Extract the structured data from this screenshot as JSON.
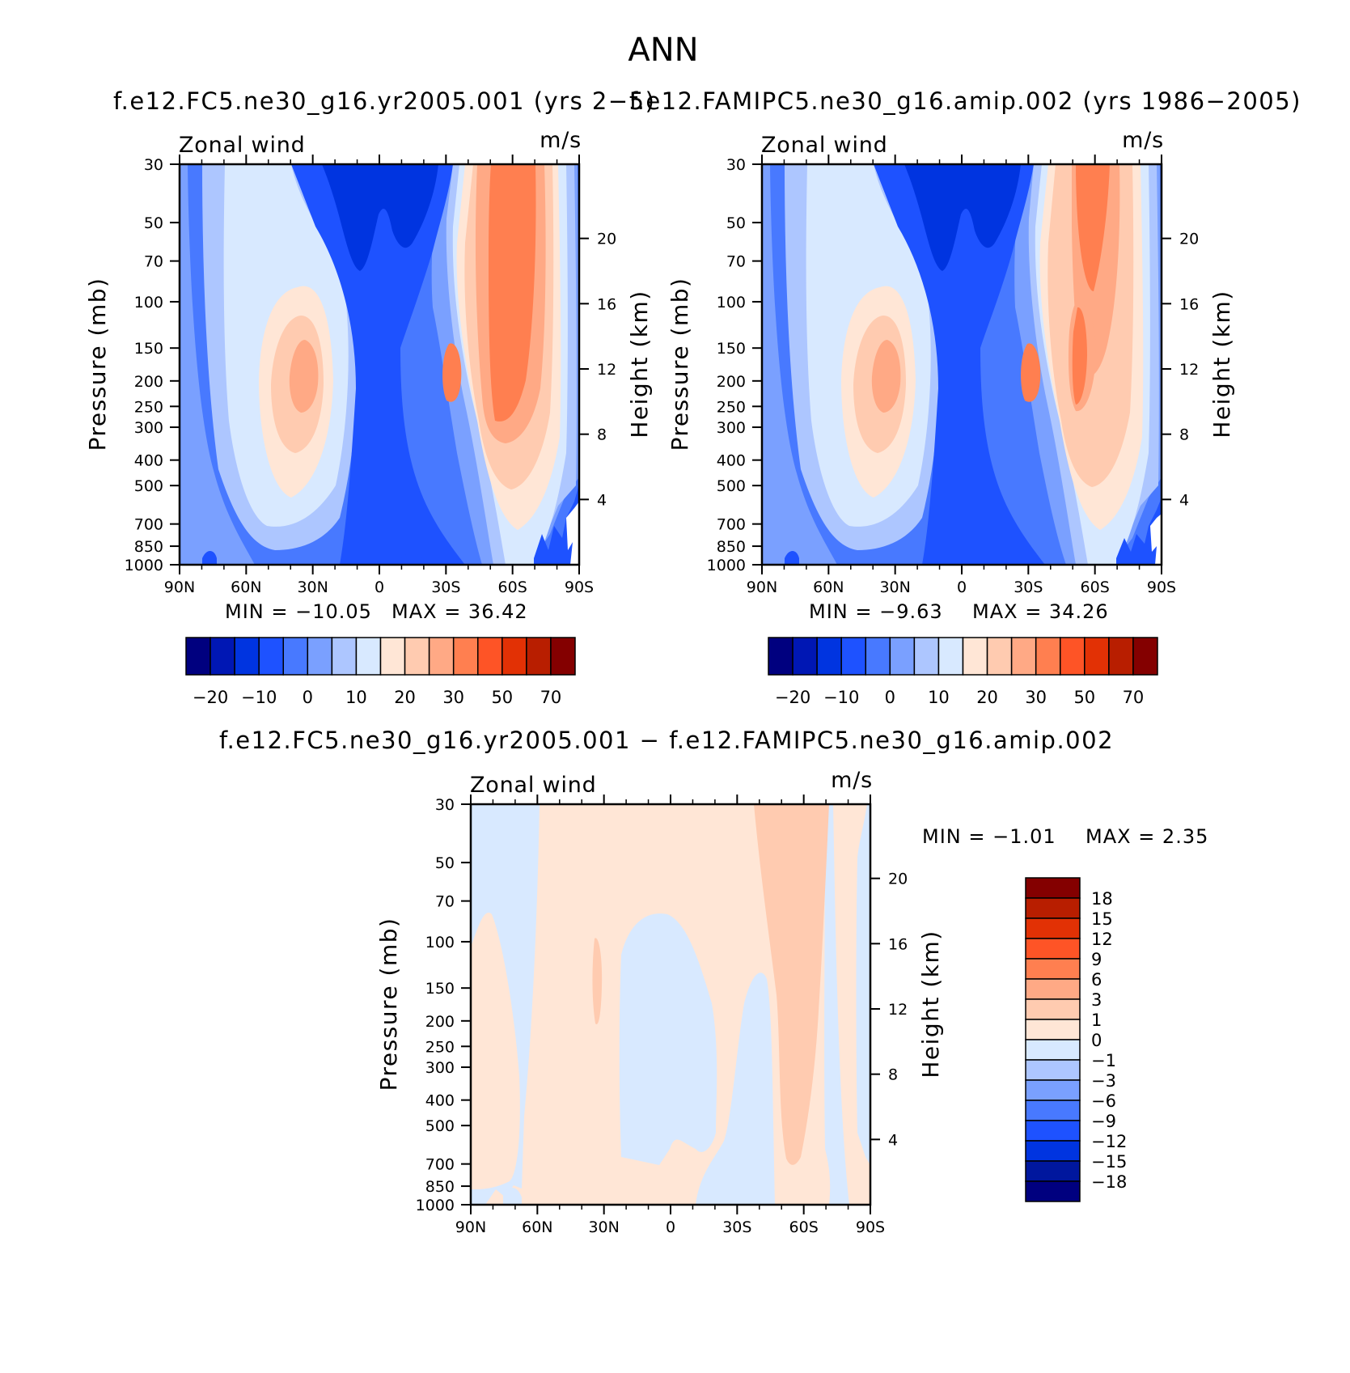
{
  "figure_title": "ANN",
  "colors": {
    "abs_scale": [
      "#00007f",
      "#0017b4",
      "#0034e0",
      "#1e52ff",
      "#4879ff",
      "#7aa0ff",
      "#adc6ff",
      "#d8e9ff",
      "#ffe6d6",
      "#ffcbb0",
      "#ffa985",
      "#ff7f50",
      "#fe5426",
      "#e23105",
      "#b81e00",
      "#840000"
    ],
    "diff_scale": [
      "#00007f",
      "#00179e",
      "#0034e0",
      "#1e52ff",
      "#4879ff",
      "#7aa0ff",
      "#adc6ff",
      "#d8e9ff",
      "#ffe6d6",
      "#ffcbb0",
      "#ffa985",
      "#ff7f50",
      "#fe5426",
      "#e23105",
      "#b81e00",
      "#840000"
    ]
  },
  "panels": [
    {
      "title": "f.e12.FC5.ne30_g16.yr2005.001 (yrs 2−5)",
      "left_label": "Zonal wind",
      "right_label": "m/s",
      "ylabel": "Pressure (mb)",
      "y2label": "Height (km)",
      "min_text": "MIN =  −10.05",
      "max_text": "MAX =   36.42"
    },
    {
      "title": "f.e12.FAMIPC5.ne30_g16.amip.002 (yrs 1986−2005)",
      "left_label": "Zonal wind",
      "right_label": "m/s",
      "ylabel": "Pressure (mb)",
      "y2label": "Height (km)",
      "min_text": "MIN =    −9.63",
      "max_text": "MAX =   34.26"
    },
    {
      "title": "f.e12.FC5.ne30_g16.yr2005.001 − f.e12.FAMIPC5.ne30_g16.amip.002",
      "left_label": "Zonal wind",
      "right_label": "m/s",
      "ylabel": "Pressure (mb)",
      "y2label": "Height (km)",
      "min_text": "MIN =   −1.01",
      "max_text": "MAX =    2.35"
    }
  ],
  "axes": {
    "x_ticks": [
      "90N",
      "60N",
      "30N",
      "0",
      "30S",
      "60S",
      "90S"
    ],
    "pressure_ticks": [
      "30",
      "50",
      "70",
      "100",
      "150",
      "200",
      "250",
      "300",
      "400",
      "500",
      "700",
      "850",
      "1000"
    ],
    "height_ticks": [
      "20",
      "16",
      "12",
      "8",
      "4"
    ]
  },
  "colorbars": {
    "abs_labels": [
      "−20",
      "−10",
      "0",
      "10",
      "20",
      "30",
      "50",
      "70"
    ],
    "diff_labels": [
      "18",
      "15",
      "12",
      "9",
      "6",
      "3",
      "1",
      "0",
      "−1",
      "−3",
      "−6",
      "−9",
      "−12",
      "−15",
      "−18"
    ]
  },
  "chart_data": [
    {
      "type": "heatmap",
      "title": "f.e12.FC5.ne30_g16.yr2005.001 (yrs 2−5)",
      "variable": "Zonal wind",
      "units": "m/s",
      "x": [
        "90N",
        "60N",
        "30N",
        "0",
        "30S",
        "60S",
        "90S"
      ],
      "y": [
        1000,
        850,
        700,
        500,
        400,
        300,
        250,
        200,
        150,
        100,
        70,
        50,
        30
      ],
      "ylabel": "Pressure (mb)",
      "y2label": "Height (km)",
      "min": -10.05,
      "max": 36.42,
      "contour_levels": [
        -25,
        -20,
        -15,
        -10,
        -5,
        0,
        5,
        10,
        15,
        20,
        25,
        30,
        40,
        50,
        60,
        70
      ]
    },
    {
      "type": "heatmap",
      "title": "f.e12.FAMIPC5.ne30_g16.amip.002 (yrs 1986−2005)",
      "variable": "Zonal wind",
      "units": "m/s",
      "x": [
        "90N",
        "60N",
        "30N",
        "0",
        "30S",
        "60S",
        "90S"
      ],
      "y": [
        1000,
        850,
        700,
        500,
        400,
        300,
        250,
        200,
        150,
        100,
        70,
        50,
        30
      ],
      "ylabel": "Pressure (mb)",
      "y2label": "Height (km)",
      "min": -9.63,
      "max": 34.26,
      "contour_levels": [
        -25,
        -20,
        -15,
        -10,
        -5,
        0,
        5,
        10,
        15,
        20,
        25,
        30,
        40,
        50,
        60,
        70
      ]
    },
    {
      "type": "heatmap",
      "title": "f.e12.FC5.ne30_g16.yr2005.001 − f.e12.FAMIPC5.ne30_g16.amip.002",
      "variable": "Zonal wind",
      "units": "m/s",
      "x": [
        "90N",
        "60N",
        "30N",
        "0",
        "30S",
        "60S",
        "90S"
      ],
      "y": [
        1000,
        850,
        700,
        500,
        400,
        300,
        250,
        200,
        150,
        100,
        70,
        50,
        30
      ],
      "ylabel": "Pressure (mb)",
      "y2label": "Height (km)",
      "min": -1.01,
      "max": 2.35,
      "contour_levels": [
        -18,
        -15,
        -12,
        -9,
        -6,
        -3,
        -1,
        0,
        1,
        3,
        6,
        9,
        12,
        15,
        18
      ]
    }
  ]
}
